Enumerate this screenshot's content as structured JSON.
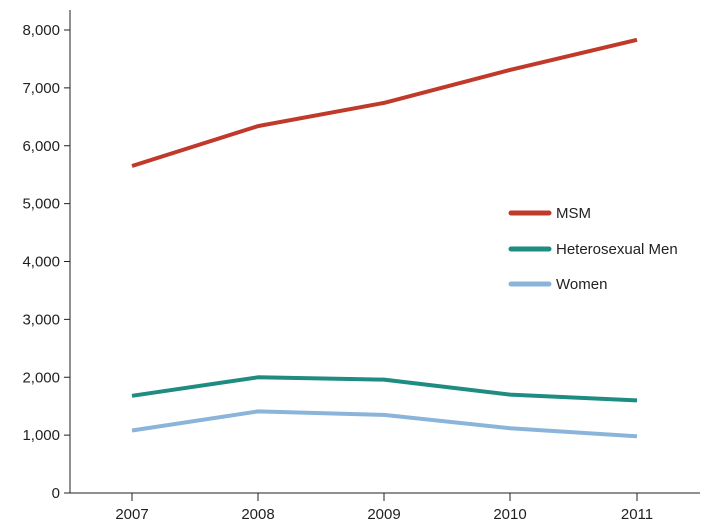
{
  "chart_data": {
    "type": "line",
    "title": "",
    "xlabel": "",
    "ylabel": "",
    "categories": [
      "2007",
      "2008",
      "2009",
      "2010",
      "2011"
    ],
    "ylim": [
      0,
      8000
    ],
    "yticks": [
      0,
      1000,
      2000,
      3000,
      4000,
      5000,
      6000,
      7000,
      8000
    ],
    "ytick_labels": [
      "0",
      "1,000",
      "2,000",
      "3,000",
      "4,000",
      "5,000",
      "6,000",
      "7,000",
      "8,000"
    ],
    "grid": false,
    "legend_position": "right",
    "series": [
      {
        "name": "MSM",
        "values": [
          5650,
          6340,
          6740,
          7310,
          7830
        ],
        "color": "#c0392b"
      },
      {
        "name": "Heterosexual Men",
        "values": [
          1680,
          2000,
          1960,
          1700,
          1600
        ],
        "color": "#1e8c80"
      },
      {
        "name": "Women",
        "values": [
          1080,
          1410,
          1350,
          1120,
          980
        ],
        "color": "#8ab4da"
      }
    ]
  }
}
